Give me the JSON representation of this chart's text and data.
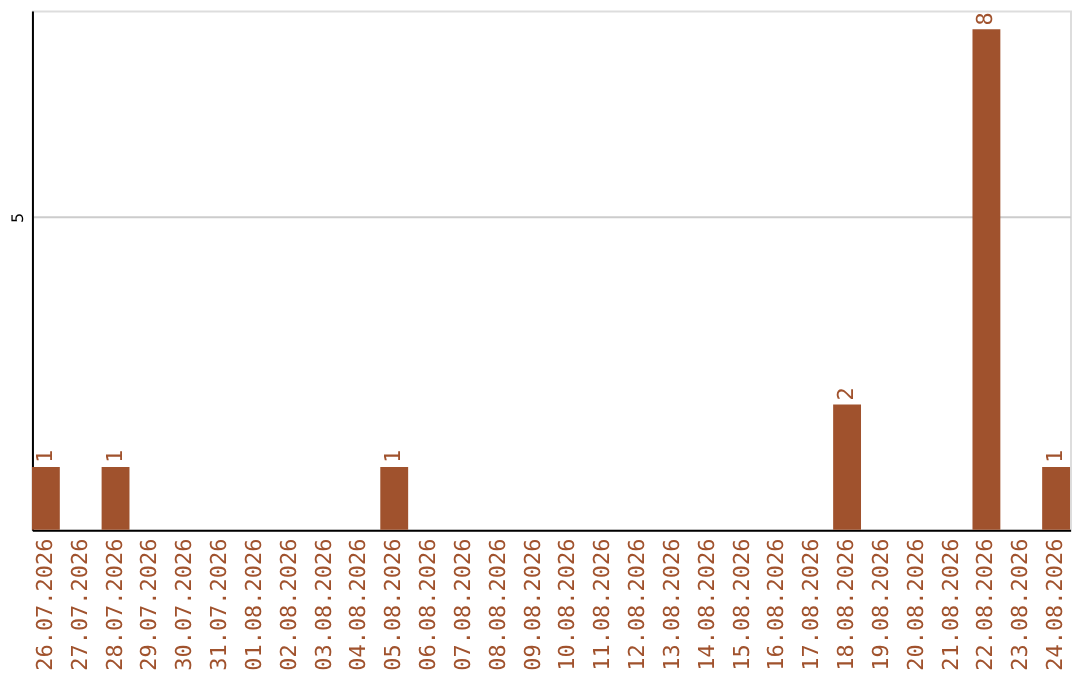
{
  "chart_data": {
    "type": "bar",
    "categories": [
      "26.07.2026",
      "27.07.2026",
      "28.07.2026",
      "29.07.2026",
      "30.07.2026",
      "31.07.2026",
      "01.08.2026",
      "02.08.2026",
      "03.08.2026",
      "04.08.2026",
      "05.08.2026",
      "06.08.2026",
      "07.08.2026",
      "08.08.2026",
      "09.08.2026",
      "10.08.2026",
      "11.08.2026",
      "12.08.2026",
      "13.08.2026",
      "14.08.2026",
      "15.08.2026",
      "16.08.2026",
      "17.08.2026",
      "18.08.2026",
      "19.08.2026",
      "20.08.2026",
      "21.08.2026",
      "22.08.2026",
      "23.08.2026",
      "24.08.2026"
    ],
    "values": [
      1,
      0,
      1,
      0,
      0,
      0,
      0,
      0,
      0,
      0,
      1,
      0,
      0,
      0,
      0,
      0,
      0,
      0,
      0,
      0,
      0,
      0,
      0,
      2,
      0,
      0,
      0,
      8,
      0,
      1
    ],
    "value_labels": [
      "1",
      null,
      "1",
      null,
      null,
      null,
      null,
      null,
      null,
      null,
      "1",
      null,
      null,
      null,
      null,
      null,
      null,
      null,
      null,
      null,
      null,
      null,
      null,
      "2",
      null,
      null,
      null,
      "8",
      null,
      "1"
    ],
    "color": "#a0522d",
    "ylim": [
      0,
      8.3
    ],
    "yticks": [
      5
    ],
    "grid": "y"
  }
}
